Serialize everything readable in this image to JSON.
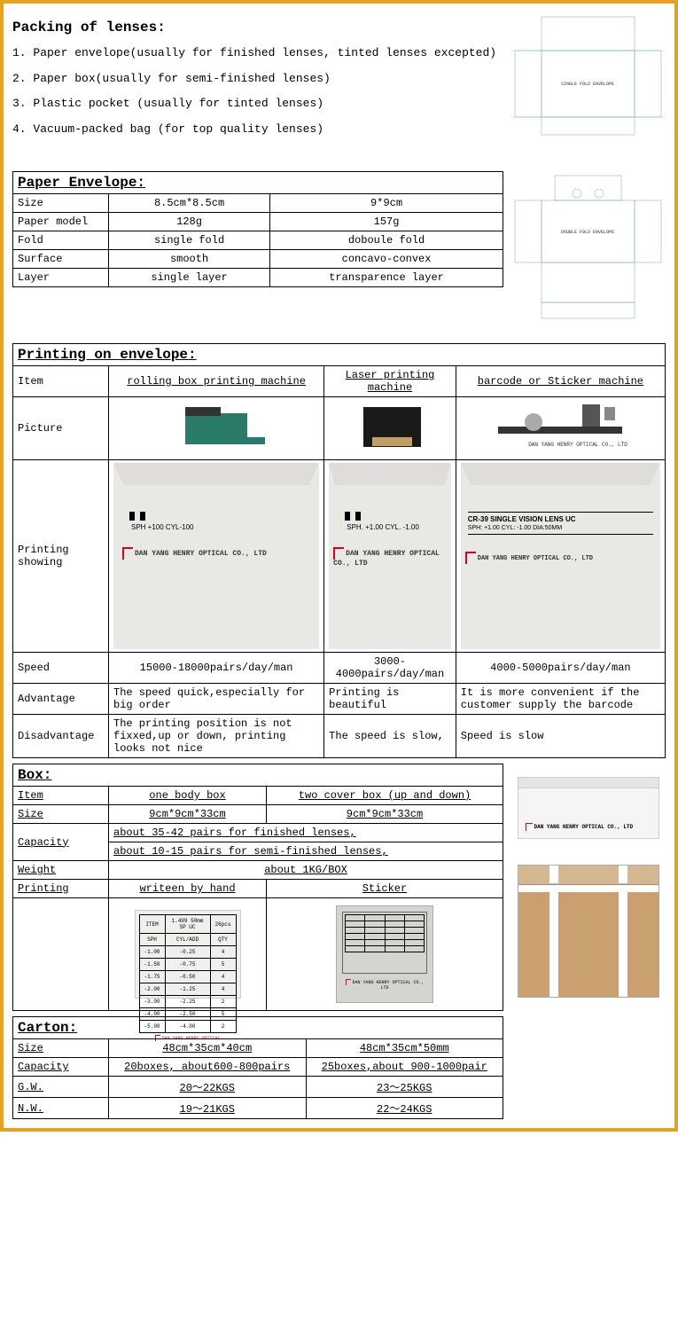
{
  "intro": {
    "title": "Packing of lenses:",
    "items": [
      "1. Paper envelope(usually for finished lenses, tinted lenses excepted)",
      "2. Paper box(usually for semi-finished lenses)",
      "3. Plastic pocket (usually for tinted lenses)",
      "4. Vacuum-packed bag (for top quality lenses)"
    ]
  },
  "diagram1_label": "SINGLE FOLD ENVELOPE",
  "diagram2_label": "DOUBLE FOLD ENVELOPE",
  "paper_envelope": {
    "title": "Paper Envelope:",
    "rows": [
      {
        "label": "Size",
        "c1": "8.5cm*8.5cm",
        "c2": "9*9cm"
      },
      {
        "label": "Paper model",
        "c1": "128g",
        "c2": "157g"
      },
      {
        "label": "Fold",
        "c1": "single fold",
        "c2": "doboule fold"
      },
      {
        "label": "Surface",
        "c1": "smooth",
        "c2": "concavo-convex"
      },
      {
        "label": "Layer",
        "c1": "single layer",
        "c2": "transparence layer"
      }
    ]
  },
  "printing": {
    "title": "Printing on envelope:",
    "item_label": "Item",
    "picture_label": "Picture",
    "showing_label": "Printing showing",
    "speed_label": "Speed",
    "adv_label": "Advantage",
    "disadv_label": "Disadvantage",
    "cols": [
      {
        "item": "rolling box printing machine",
        "speed": "15000-18000pairs/day/man",
        "adv": "The speed quick,especially for big order",
        "disadv": "The printing position is not fixxed,up or down, printing looks not nice",
        "env_text1": "SPH  +100  CYL-100",
        "company": "DAN YANG HENRY OPTICAL CO., LTD"
      },
      {
        "item": "Laser printing machine",
        "speed": "3000-4000pairs/day/man",
        "adv": "Printing is beautiful",
        "disadv": "The speed is slow,",
        "env_text1": "SPH.  +1.00   CYL.    -1.00",
        "company": "DAN YANG HENRY OPTICAL CO., LTD"
      },
      {
        "item": "barcode or Sticker machine",
        "speed": "4000-5000pairs/day/man",
        "adv": "It is more convenient if the customer supply the barcode",
        "disadv": "Speed is slow",
        "env_text1": "CR-39 SINGLE VISION LENS UC",
        "env_text2": "SPH: +1.00  CYL: -1.00  DIA:50MM",
        "company": "DAN YANG HENRY OPTICAL CO., LTD"
      }
    ]
  },
  "box": {
    "title": "Box:",
    "item_label": "Item",
    "item_c1": "one body box",
    "item_c2": "two cover box (up and down)",
    "size_label": "Size",
    "size_c1": "9cm*9cm*33cm",
    "size_c2": "9cm*9cm*33cm",
    "capacity_label": "Capacity",
    "capacity_l1": "about 35-42 pairs for finished lenses,",
    "capacity_l2": "about 10-15 pairs for semi-finished lenses,",
    "weight_label": "Weight",
    "weight_val": "about 1KG/BOX",
    "printing_label": "Printing",
    "printing_c1": "writeen by hand",
    "printing_c2": "Sticker",
    "box_company": "DAN YANG HENRY OPTICAL CO., LTD",
    "sticker_company": "DAN YANG HENRY OPTICAL CO., LTD",
    "hand_rows": [
      [
        "ITEM",
        "1.499 50mm SP UC",
        "26pcs"
      ],
      [
        "SPH",
        "CYL/ADD",
        "QTY"
      ],
      [
        "-1.00",
        "-0.25",
        "4"
      ],
      [
        "-1.50",
        "-0.75",
        "5"
      ],
      [
        "-1.75",
        "-0.50",
        "4"
      ],
      [
        "-2.00",
        "-1.25",
        "4"
      ],
      [
        "-3.00",
        "-2.25",
        "2"
      ],
      [
        "-4.00",
        "-2.50",
        "5"
      ],
      [
        "-5.00",
        "-4.00",
        "2"
      ]
    ]
  },
  "carton": {
    "title": "Carton:",
    "size_label": "Size",
    "size_c1": "48cm*35cm*40cm",
    "size_c2": "48cm*35cm*50mm",
    "cap_label": "Capacity",
    "cap_c1": "20boxes, about600-800pairs",
    "cap_c2": "25boxes,about 900-1000pair",
    "gw_label": "G.W.",
    "gw_c1": "20～22KGS",
    "gw_c2": "23～25KGS",
    "nw_label": "N.W.",
    "nw_c1": "19～21KGS",
    "nw_c2": "22～24KGS"
  },
  "colors": {
    "border": "#e8a01f",
    "logo_red": "#d02020"
  }
}
